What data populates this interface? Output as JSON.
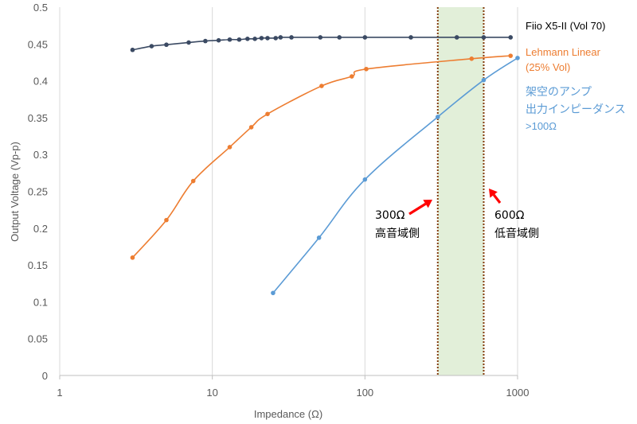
{
  "chart_data": {
    "type": "scatter",
    "title": "",
    "xlabel": "Impedance (Ω)",
    "ylabel": "Output Voltage (Vp-p)",
    "xscale": "log",
    "xlim": [
      1,
      1000
    ],
    "ylim": [
      0,
      0.5
    ],
    "xticks": [
      "1",
      "10",
      "100",
      "1000"
    ],
    "yticks": [
      "0",
      "0.05",
      "0.1",
      "0.15",
      "0.2",
      "0.25",
      "0.3",
      "0.35",
      "0.4",
      "0.45",
      "0.5"
    ],
    "grid": "vertical",
    "series": [
      {
        "name": "Fiio X5-II (Vol 70)",
        "color": "#3b4a63",
        "x": [
          3,
          4,
          5,
          7,
          9,
          11,
          13,
          15,
          17,
          19,
          21,
          23,
          26,
          28,
          33,
          51,
          68,
          100,
          200,
          400,
          600,
          900
        ],
        "y": [
          0.442,
          0.447,
          0.449,
          0.452,
          0.454,
          0.455,
          0.456,
          0.456,
          0.457,
          0.457,
          0.458,
          0.458,
          0.458,
          0.459,
          0.459,
          0.459,
          0.459,
          0.459,
          0.459,
          0.459,
          0.459,
          0.459
        ]
      },
      {
        "name": "Lehmann Linear (25% Vol)",
        "color": "#ed7d31",
        "x": [
          3,
          5,
          7.5,
          13,
          18,
          23,
          52,
          82,
          102,
          500,
          900
        ],
        "y": [
          0.16,
          0.211,
          0.264,
          0.31,
          0.337,
          0.355,
          0.393,
          0.406,
          0.416,
          0.43,
          0.434
        ]
      },
      {
        "name": "架空のアンプ 出力インピーダンス >100Ω",
        "color": "#5b9bd5",
        "x": [
          25,
          50,
          100,
          300,
          600,
          1000
        ],
        "y": [
          0.112,
          0.187,
          0.266,
          0.351,
          0.401,
          0.431
        ]
      }
    ],
    "legend_labels": {
      "fiio": "Fiio X5-II (Vol 70)",
      "lehmann_1": "Lehmann Linear",
      "lehmann_2": "(25% Vol)",
      "virtual_1": "架空のアンプ",
      "virtual_2": "出力インピーダンス",
      "virtual_3": ">100Ω"
    },
    "shaded_band": {
      "x_from": 300,
      "x_to": 600,
      "color": "#e2efd9"
    },
    "markers": [
      {
        "x": 300,
        "label_1": "300Ω",
        "label_2": "高音域側"
      },
      {
        "x": 600,
        "label_1": "600Ω",
        "label_2": "低音域側"
      }
    ],
    "marker_line_color": "#843c0c",
    "arrow_color": "#ff0000"
  }
}
